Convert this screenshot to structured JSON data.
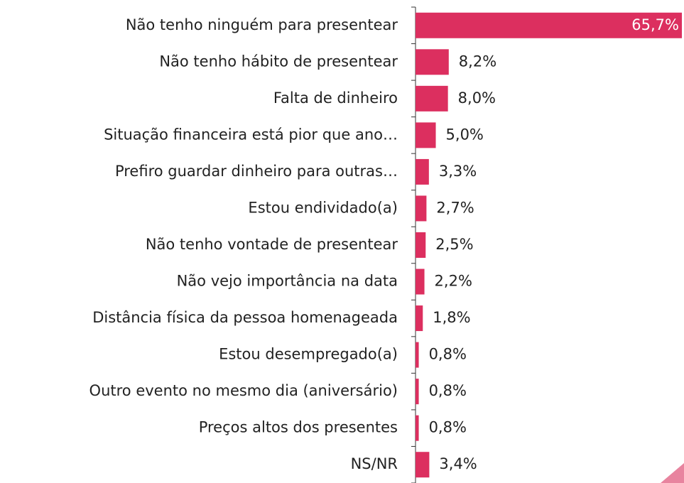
{
  "chart_data": {
    "type": "barh",
    "categories": [
      "Não tenho ninguém para presentear",
      "Não tenho hábito de presentear",
      "Falta de dinheiro",
      "Situação financeira está pior que ano…",
      "Prefiro guardar dinheiro para outras…",
      "Estou endividado(a)",
      "Não tenho vontade de presentear",
      "Não vejo importância na data",
      "Distância física da pessoa homenageada",
      "Estou desempregado(a)",
      "Outro evento no mesmo dia (aniversário)",
      "Preços altos dos presentes",
      "NS/NR"
    ],
    "values": [
      65.7,
      8.2,
      8.0,
      5.0,
      3.3,
      2.7,
      2.5,
      2.2,
      1.8,
      0.8,
      0.8,
      0.8,
      3.4
    ],
    "value_labels": [
      "65,7%",
      "8,2%",
      "8,0%",
      "5,0%",
      "3,3%",
      "2,7%",
      "2,5%",
      "2,2%",
      "1,8%",
      "0,8%",
      "0,8%",
      "0,8%",
      "3,4%"
    ],
    "color": "#dc2f5f"
  }
}
